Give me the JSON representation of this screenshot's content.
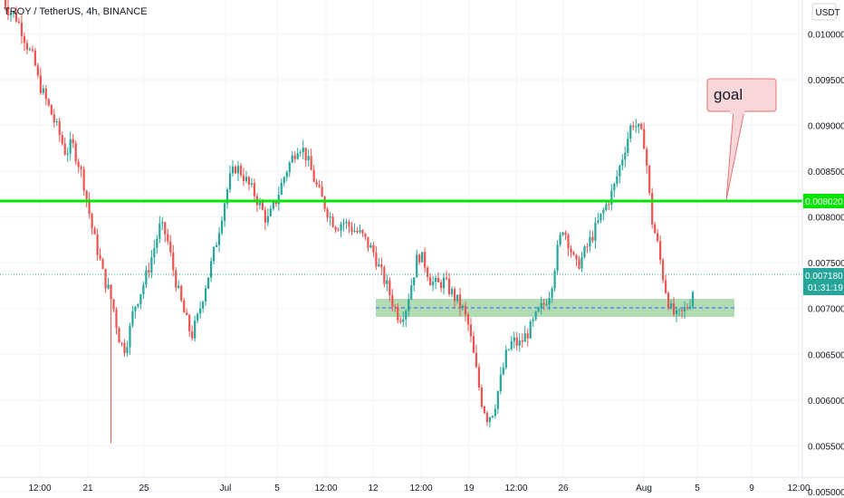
{
  "header": {
    "symbol_title": "TROY / TetherUS, 4h, BINANCE",
    "currency_button": "USDT"
  },
  "colors": {
    "up": "#26a69a",
    "down": "#ef5350",
    "level_line": "#00e600",
    "zone_fill": "#a5d6a7",
    "zone_mid": "#2962ff",
    "last_price": "#26a69a",
    "grid": "#f0f3fa",
    "callout_fill": "#f8d7da",
    "callout_stroke": "#e57373"
  },
  "annotations": {
    "goal_label": "goal",
    "level_price": "0.008020",
    "last_price": "0.007180",
    "countdown": "01:31:19"
  },
  "chart_data": {
    "type": "candlestick",
    "title": "TROY / TetherUS, 4h, BINANCE",
    "y_axis": {
      "unit": "USDT",
      "range": [
        0.00493,
        0.01037
      ],
      "ticks": [
        "0.010000",
        "0.009500",
        "0.009000",
        "0.008500",
        "0.008000",
        "0.007500",
        "0.007000",
        "0.006500",
        "0.006000",
        "0.005500",
        "0.005000"
      ]
    },
    "x_axis": {
      "ticks": [
        "12:00",
        "21",
        "25",
        "Jul",
        "5",
        "12:00",
        "12",
        "12:00",
        "19",
        "12:00",
        "26",
        "Aug",
        "5",
        "9",
        "12:00"
      ]
    },
    "grid": true,
    "horizontal_level": 0.00802,
    "support_zone": {
      "low": 0.00673,
      "high": 0.00694,
      "mid": 0.00681
    },
    "last_price": 0.00718,
    "price_path": [
      [
        0,
        0.0104
      ],
      [
        5,
        0.01025
      ],
      [
        10,
        0.0102
      ],
      [
        15,
        0.01005
      ],
      [
        20,
        0.00985
      ],
      [
        25,
        0.0097
      ],
      [
        28,
        0.0095
      ],
      [
        32,
        0.00935
      ],
      [
        38,
        0.00915
      ],
      [
        45,
        0.0089
      ],
      [
        50,
        0.0087
      ],
      [
        55,
        0.0088
      ],
      [
        60,
        0.0086
      ],
      [
        64,
        0.0084
      ],
      [
        68,
        0.0081
      ],
      [
        72,
        0.0078
      ],
      [
        76,
        0.0076
      ],
      [
        80,
        0.00735
      ],
      [
        84,
        0.0072
      ],
      [
        88,
        0.007
      ],
      [
        92,
        0.0067
      ],
      [
        96,
        0.00655
      ],
      [
        100,
        0.0067
      ],
      [
        104,
        0.007
      ],
      [
        110,
        0.0072
      ],
      [
        115,
        0.0074
      ],
      [
        120,
        0.00765
      ],
      [
        125,
        0.0079
      ],
      [
        130,
        0.0078
      ],
      [
        135,
        0.00745
      ],
      [
        140,
        0.00715
      ],
      [
        145,
        0.0069
      ],
      [
        150,
        0.0067
      ],
      [
        155,
        0.0069
      ],
      [
        160,
        0.0072
      ],
      [
        165,
        0.00745
      ],
      [
        170,
        0.00775
      ],
      [
        175,
        0.0081
      ],
      [
        180,
        0.0084
      ],
      [
        185,
        0.00855
      ],
      [
        190,
        0.00848
      ],
      [
        195,
        0.00835
      ],
      [
        200,
        0.00825
      ],
      [
        205,
        0.0081
      ],
      [
        210,
        0.00795
      ],
      [
        215,
        0.0081
      ],
      [
        220,
        0.0083
      ],
      [
        225,
        0.0085
      ],
      [
        230,
        0.00865
      ],
      [
        235,
        0.0088
      ],
      [
        240,
        0.0087
      ],
      [
        245,
        0.0085
      ],
      [
        250,
        0.0083
      ],
      [
        255,
        0.00815
      ],
      [
        260,
        0.008
      ],
      [
        265,
        0.0079
      ],
      [
        270,
        0.00795
      ],
      [
        275,
        0.0079
      ],
      [
        280,
        0.00785
      ],
      [
        285,
        0.0078
      ],
      [
        290,
        0.0077
      ],
      [
        295,
        0.0076
      ],
      [
        300,
        0.0074
      ],
      [
        305,
        0.00725
      ],
      [
        310,
        0.00705
      ],
      [
        315,
        0.0069
      ],
      [
        320,
        0.007
      ],
      [
        325,
        0.0073
      ],
      [
        330,
        0.0076
      ],
      [
        335,
        0.0075
      ],
      [
        340,
        0.0073
      ],
      [
        345,
        0.00725
      ],
      [
        350,
        0.0073
      ],
      [
        355,
        0.0072
      ],
      [
        360,
        0.0071
      ],
      [
        365,
        0.007
      ],
      [
        370,
        0.0068
      ],
      [
        375,
        0.0064
      ],
      [
        380,
        0.006
      ],
      [
        385,
        0.0058
      ],
      [
        390,
        0.0059
      ],
      [
        395,
        0.0062
      ],
      [
        400,
        0.0065
      ],
      [
        405,
        0.00665
      ],
      [
        410,
        0.0066
      ],
      [
        415,
        0.0067
      ],
      [
        420,
        0.0068
      ],
      [
        425,
        0.00695
      ],
      [
        430,
        0.00705
      ],
      [
        435,
        0.0072
      ],
      [
        440,
        0.0076
      ],
      [
        445,
        0.0079
      ],
      [
        450,
        0.0077
      ],
      [
        455,
        0.00745
      ],
      [
        460,
        0.00755
      ],
      [
        465,
        0.0077
      ],
      [
        470,
        0.00785
      ],
      [
        475,
        0.008
      ],
      [
        480,
        0.00815
      ],
      [
        485,
        0.0083
      ],
      [
        490,
        0.00855
      ],
      [
        495,
        0.0088
      ],
      [
        500,
        0.00905
      ],
      [
        505,
        0.00895
      ],
      [
        510,
        0.0088
      ],
      [
        515,
        0.008
      ],
      [
        520,
        0.0077
      ],
      [
        525,
        0.0073
      ],
      [
        530,
        0.007
      ],
      [
        535,
        0.0069
      ],
      [
        540,
        0.00695
      ],
      [
        545,
        0.00705
      ],
      [
        548,
        0.00718
      ]
    ]
  }
}
